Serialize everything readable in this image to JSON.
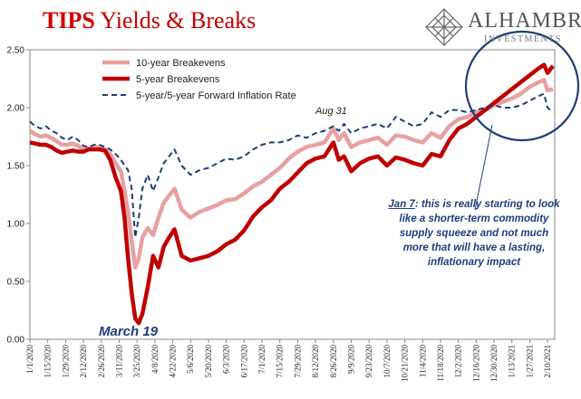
{
  "title": {
    "part1": "TIPS",
    "part2": "Yields & Breaks"
  },
  "brand": {
    "name": "ALHAMBRA",
    "sub": "INVESTMENTS",
    "logo_icon": "diamond-lattice-icon"
  },
  "annotations": {
    "jan7_date": "Jan 7",
    "jan7_text": ": this is really starting to look like a shorter-term commodity supply squeeze and not much more that will have a lasting, inflationary impact",
    "march19": "March 19",
    "aug31": "Aug 31"
  },
  "colors": {
    "ten_year": "#e8a0a0",
    "five_year": "#c00000",
    "forward": "#1f3d7a",
    "circle": "#1f3d7a",
    "title_red": "#d40000"
  },
  "chart_data": {
    "type": "line",
    "ylim": [
      0,
      2.5
    ],
    "yticks": [
      "0.00",
      "0.50",
      "1.00",
      "1.50",
      "2.00",
      "2.50"
    ],
    "xticks": [
      "1/1/2020",
      "1/15/2020",
      "1/29/2020",
      "2/12/2020",
      "2/26/2020",
      "3/11/2020",
      "3/25/2020",
      "4/8/2020",
      "4/22/2020",
      "5/6/2020",
      "5/20/2020",
      "6/3/2020",
      "6/17/2020",
      "7/1/2020",
      "7/15/2020",
      "7/29/2020",
      "8/12/2020",
      "8/26/2020",
      "9/9/2020",
      "9/23/2020",
      "10/7/2020",
      "10/21/2020",
      "11/4/2020",
      "11/18/2020",
      "12/2/2020",
      "12/16/2020",
      "12/30/2020",
      "1/13/2021",
      "1/27/2021",
      "2/10/2021"
    ],
    "legend_position": "top-left",
    "grid": false,
    "series": [
      {
        "name": "10-year Breakevens",
        "x": [
          0,
          0.3,
          0.6,
          0.9,
          1.2,
          1.5,
          1.8,
          2.1,
          2.4,
          2.7,
          3.0,
          3.3,
          3.6,
          3.9,
          4.2,
          4.5,
          4.8,
          5.1,
          5.3,
          5.5,
          5.7,
          5.9,
          6.1,
          6.3,
          6.6,
          6.9,
          7.2,
          7.5,
          7.8,
          8.1,
          8.5,
          9.0,
          9.5,
          10.0,
          10.5,
          11.0,
          11.5,
          12.0,
          12.5,
          13.0,
          13.5,
          14.0,
          14.5,
          15.0,
          15.5,
          16.0,
          16.5,
          17.0,
          17.3,
          17.6,
          18.0,
          18.5,
          19.0,
          19.5,
          20.0,
          20.5,
          21.0,
          21.5,
          22.0,
          22.5,
          23.0,
          23.5,
          24.0,
          24.5,
          25.0,
          25.5,
          26.0,
          26.5,
          27.0,
          27.5,
          28.0,
          28.5,
          28.8,
          29.0,
          29.3
        ],
        "values": [
          1.8,
          1.77,
          1.75,
          1.76,
          1.74,
          1.71,
          1.68,
          1.68,
          1.69,
          1.67,
          1.64,
          1.65,
          1.66,
          1.66,
          1.64,
          1.6,
          1.52,
          1.45,
          1.28,
          1.1,
          0.85,
          0.62,
          0.7,
          0.88,
          0.96,
          0.9,
          1.05,
          1.18,
          1.24,
          1.3,
          1.12,
          1.05,
          1.1,
          1.13,
          1.16,
          1.2,
          1.21,
          1.26,
          1.32,
          1.36,
          1.42,
          1.48,
          1.56,
          1.62,
          1.66,
          1.68,
          1.7,
          1.82,
          1.72,
          1.78,
          1.66,
          1.7,
          1.72,
          1.74,
          1.68,
          1.76,
          1.75,
          1.72,
          1.7,
          1.78,
          1.74,
          1.84,
          1.9,
          1.92,
          1.96,
          1.98,
          2.02,
          2.05,
          2.08,
          2.12,
          2.18,
          2.22,
          2.24,
          2.15,
          2.16
        ]
      },
      {
        "name": "5-year Breakevens",
        "x": [
          0,
          0.3,
          0.6,
          0.9,
          1.2,
          1.5,
          1.8,
          2.1,
          2.4,
          2.7,
          3.0,
          3.3,
          3.6,
          3.9,
          4.2,
          4.5,
          4.8,
          5.1,
          5.3,
          5.5,
          5.7,
          5.9,
          6.1,
          6.3,
          6.6,
          6.9,
          7.2,
          7.5,
          7.8,
          8.1,
          8.5,
          9.0,
          9.5,
          10.0,
          10.5,
          11.0,
          11.5,
          12.0,
          12.5,
          13.0,
          13.5,
          14.0,
          14.5,
          15.0,
          15.5,
          16.0,
          16.5,
          17.0,
          17.3,
          17.6,
          18.0,
          18.5,
          19.0,
          19.5,
          20.0,
          20.5,
          21.0,
          21.5,
          22.0,
          22.5,
          23.0,
          23.5,
          24.0,
          24.5,
          25.0,
          25.5,
          26.0,
          26.5,
          27.0,
          27.5,
          28.0,
          28.5,
          28.8,
          29.0,
          29.3
        ],
        "values": [
          1.7,
          1.69,
          1.68,
          1.68,
          1.66,
          1.63,
          1.61,
          1.62,
          1.63,
          1.62,
          1.62,
          1.64,
          1.64,
          1.64,
          1.63,
          1.55,
          1.4,
          1.28,
          1.05,
          0.7,
          0.4,
          0.18,
          0.14,
          0.22,
          0.45,
          0.72,
          0.62,
          0.8,
          0.88,
          0.95,
          0.72,
          0.68,
          0.7,
          0.72,
          0.76,
          0.82,
          0.86,
          0.94,
          1.06,
          1.14,
          1.2,
          1.3,
          1.36,
          1.44,
          1.52,
          1.56,
          1.58,
          1.7,
          1.55,
          1.58,
          1.45,
          1.52,
          1.56,
          1.58,
          1.5,
          1.57,
          1.55,
          1.52,
          1.5,
          1.6,
          1.58,
          1.72,
          1.82,
          1.86,
          1.92,
          1.98,
          2.04,
          2.1,
          2.16,
          2.22,
          2.28,
          2.34,
          2.37,
          2.3,
          2.36
        ]
      },
      {
        "name": "5-year/5-year Forward Inflation Rate",
        "x": [
          0,
          0.3,
          0.6,
          0.9,
          1.2,
          1.5,
          1.8,
          2.1,
          2.4,
          2.7,
          3.0,
          3.3,
          3.6,
          3.9,
          4.2,
          4.5,
          4.8,
          5.1,
          5.3,
          5.5,
          5.7,
          5.9,
          6.1,
          6.3,
          6.6,
          6.9,
          7.2,
          7.5,
          7.8,
          8.1,
          8.5,
          9.0,
          9.5,
          10.0,
          10.5,
          11.0,
          11.5,
          12.0,
          12.5,
          13.0,
          13.5,
          14.0,
          14.5,
          15.0,
          15.5,
          16.0,
          16.5,
          17.0,
          17.3,
          17.6,
          18.0,
          18.5,
          19.0,
          19.5,
          20.0,
          20.5,
          21.0,
          21.5,
          22.0,
          22.5,
          23.0,
          23.5,
          24.0,
          24.5,
          25.0,
          25.5,
          26.0,
          26.5,
          27.0,
          27.5,
          28.0,
          28.5,
          28.8,
          29.0,
          29.3
        ],
        "values": [
          1.88,
          1.84,
          1.82,
          1.84,
          1.8,
          1.78,
          1.74,
          1.72,
          1.75,
          1.72,
          1.67,
          1.66,
          1.68,
          1.68,
          1.66,
          1.64,
          1.6,
          1.55,
          1.5,
          1.46,
          1.3,
          0.88,
          1.05,
          1.3,
          1.42,
          1.28,
          1.4,
          1.52,
          1.58,
          1.64,
          1.5,
          1.42,
          1.46,
          1.48,
          1.52,
          1.56,
          1.55,
          1.58,
          1.64,
          1.68,
          1.7,
          1.7,
          1.72,
          1.76,
          1.74,
          1.78,
          1.8,
          1.84,
          1.8,
          1.86,
          1.78,
          1.82,
          1.84,
          1.86,
          1.82,
          1.92,
          1.88,
          1.84,
          1.86,
          1.96,
          1.92,
          1.98,
          1.98,
          1.96,
          1.98,
          2.0,
          2.02,
          2.0,
          2.0,
          2.02,
          2.06,
          2.1,
          2.12,
          2.0,
          1.96
        ]
      }
    ]
  }
}
